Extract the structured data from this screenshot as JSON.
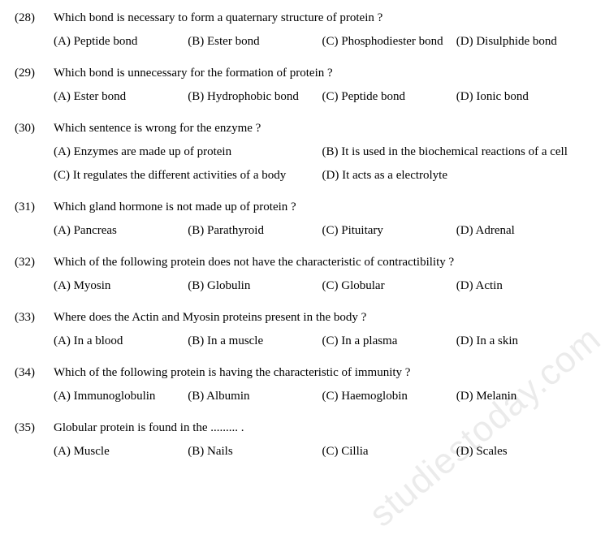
{
  "watermark": "studiestoday.com",
  "questions": [
    {
      "num": "(28)",
      "text": "Which bond is necessary to form a quaternary structure of protein ?",
      "layout": "4col",
      "opts": [
        "(A) Peptide bond",
        "(B) Ester bond",
        "(C) Phosphodiester bond",
        "(D) Disulphide bond"
      ]
    },
    {
      "num": "(29)",
      "text": "Which bond is unnecessary for the formation of protein ?",
      "layout": "4col",
      "opts": [
        "(A) Ester bond",
        "(B) Hydrophobic bond",
        "(C) Peptide bond",
        "(D) Ionic bond"
      ]
    },
    {
      "num": "(30)",
      "text": "Which sentence is wrong for the enzyme ?",
      "layout": "2col",
      "opts": [
        "(A) Enzymes are made up of protein",
        "(B) It is used in the biochemical reactions of a cell",
        "(C) It regulates the different activities of a body",
        "(D) It acts as a electrolyte"
      ]
    },
    {
      "num": "(31)",
      "text": "Which gland hormone is not made up of protein ?",
      "layout": "4col",
      "opts": [
        "(A) Pancreas",
        "(B) Parathyroid",
        "(C) Pituitary",
        "(D) Adrenal"
      ]
    },
    {
      "num": "(32)",
      "text": "Which of the following protein does not have the characteristic of contractibility ?",
      "layout": "4col",
      "opts": [
        "(A) Myosin",
        "(B) Globulin",
        "(C) Globular",
        "(D) Actin"
      ]
    },
    {
      "num": "(33)",
      "text": "Where does the Actin and Myosin proteins present in the body ?",
      "layout": "4col",
      "opts": [
        "(A) In a blood",
        "(B) In a muscle",
        "(C) In a plasma",
        "(D) In a skin"
      ]
    },
    {
      "num": "(34)",
      "text": "Which of the following protein is having the characteristic of immunity ?",
      "layout": "4col",
      "opts": [
        "(A) Immunoglobulin",
        "(B) Albumin",
        "(C) Haemoglobin",
        "(D) Melanin"
      ]
    },
    {
      "num": "(35)",
      "text": "Globular protein is found in the ......... .",
      "layout": "4col",
      "opts": [
        "(A) Muscle",
        "(B) Nails",
        "(C) Cillia",
        "(D) Scales"
      ]
    }
  ]
}
